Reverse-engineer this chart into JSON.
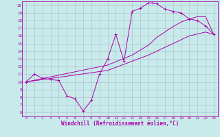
{
  "bg_color": "#c8eaea",
  "line_color": "#aa00aa",
  "grid_color": "#aabbcc",
  "xlabel": "Windchill (Refroidissement éolien,°C)",
  "xlim": [
    -0.5,
    23.5
  ],
  "ylim": [
    5.5,
    20.5
  ],
  "xticks": [
    0,
    1,
    2,
    3,
    4,
    5,
    6,
    7,
    8,
    9,
    10,
    11,
    12,
    13,
    14,
    15,
    16,
    17,
    18,
    19,
    20,
    21,
    22,
    23
  ],
  "yticks": [
    6,
    7,
    8,
    9,
    10,
    11,
    12,
    13,
    14,
    15,
    16,
    17,
    18,
    19,
    20
  ],
  "curve1_x": [
    0,
    1,
    2,
    3,
    4,
    5,
    6,
    7,
    8,
    9,
    10,
    11,
    12,
    13,
    14,
    15,
    15.5,
    16,
    17,
    18,
    19,
    20,
    21,
    22,
    23
  ],
  "curve1_y": [
    10,
    11,
    10.5,
    10.3,
    10.2,
    8.2,
    7.8,
    6.2,
    7.6,
    11.0,
    13.0,
    16.2,
    12.7,
    19.2,
    19.6,
    20.3,
    20.3,
    20.2,
    19.5,
    19.2,
    19.0,
    18.2,
    18.0,
    17.3,
    16.2
  ],
  "curve2_x": [
    0,
    10,
    13,
    15,
    16,
    17,
    18,
    19,
    20,
    21,
    22,
    23
  ],
  "curve2_y": [
    10,
    12.2,
    13.5,
    14.8,
    15.8,
    16.5,
    17.2,
    17.8,
    18.2,
    18.5,
    18.5,
    16.2
  ],
  "curve3_x": [
    0,
    10,
    15,
    18,
    20,
    22,
    23
  ],
  "curve3_y": [
    10,
    11.5,
    13.5,
    15.0,
    16.0,
    16.5,
    16.2
  ]
}
